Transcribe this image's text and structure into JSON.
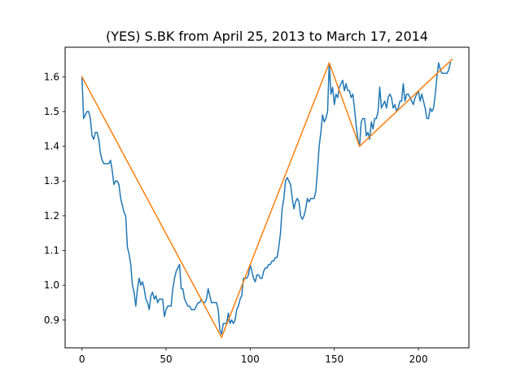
{
  "chart_data": {
    "type": "line",
    "title": "(YES) S.BK from April 25, 2013 to March 17, 2014",
    "xlabel": "",
    "ylabel": "",
    "xlim": [
      -10,
      230
    ],
    "ylim": [
      0.82,
      1.685
    ],
    "x_ticks": [
      0,
      50,
      100,
      150,
      200
    ],
    "y_ticks": [
      0.9,
      1.0,
      1.1,
      1.2,
      1.3,
      1.4,
      1.5,
      1.6
    ],
    "grid": false,
    "legend": "none",
    "series": [
      {
        "color": "#1f77b4",
        "points": [
          [
            0,
            1.6
          ],
          [
            1,
            1.48
          ],
          [
            2,
            1.49
          ],
          [
            3,
            1.5
          ],
          [
            4,
            1.5
          ],
          [
            5,
            1.48
          ],
          [
            6,
            1.43
          ],
          [
            7,
            1.42
          ],
          [
            8,
            1.44
          ],
          [
            9,
            1.44
          ],
          [
            10,
            1.42
          ],
          [
            11,
            1.38
          ],
          [
            12,
            1.36
          ],
          [
            13,
            1.35
          ],
          [
            14,
            1.35
          ],
          [
            15,
            1.35
          ],
          [
            16,
            1.35
          ],
          [
            17,
            1.36
          ],
          [
            18,
            1.33
          ],
          [
            19,
            1.29
          ],
          [
            20,
            1.3
          ],
          [
            21,
            1.3
          ],
          [
            22,
            1.29
          ],
          [
            23,
            1.25
          ],
          [
            24,
            1.23
          ],
          [
            25,
            1.21
          ],
          [
            26,
            1.2
          ],
          [
            27,
            1.11
          ],
          [
            28,
            1.09
          ],
          [
            29,
            1.06
          ],
          [
            30,
            1.0
          ],
          [
            31,
            0.98
          ],
          [
            32,
            0.94
          ],
          [
            33,
            0.99
          ],
          [
            34,
            1.02
          ],
          [
            35,
            1.0
          ],
          [
            36,
            1.01
          ],
          [
            37,
            0.99
          ],
          [
            38,
            0.96
          ],
          [
            39,
            0.95
          ],
          [
            40,
            0.93
          ],
          [
            41,
            0.97
          ],
          [
            42,
            0.98
          ],
          [
            43,
            0.96
          ],
          [
            44,
            0.97
          ],
          [
            45,
            0.95
          ],
          [
            46,
            0.96
          ],
          [
            47,
            0.96
          ],
          [
            48,
            0.96
          ],
          [
            49,
            0.91
          ],
          [
            50,
            0.93
          ],
          [
            51,
            0.94
          ],
          [
            52,
            0.94
          ],
          [
            53,
            0.94
          ],
          [
            54,
            0.99
          ],
          [
            55,
            1.02
          ],
          [
            56,
            1.04
          ],
          [
            57,
            1.05
          ],
          [
            58,
            1.06
          ],
          [
            59,
            0.99
          ],
          [
            60,
            0.99
          ],
          [
            61,
            0.96
          ],
          [
            62,
            0.95
          ],
          [
            63,
            0.94
          ],
          [
            64,
            0.94
          ],
          [
            65,
            0.93
          ],
          [
            66,
            0.93
          ],
          [
            67,
            0.93
          ],
          [
            68,
            0.94
          ],
          [
            69,
            0.95
          ],
          [
            70,
            0.95
          ],
          [
            71,
            0.96
          ],
          [
            72,
            0.95
          ],
          [
            73,
            0.95
          ],
          [
            74,
            0.96
          ],
          [
            75,
            0.99
          ],
          [
            76,
            0.97
          ],
          [
            77,
            0.95
          ],
          [
            78,
            0.95
          ],
          [
            79,
            0.95
          ],
          [
            80,
            0.95
          ],
          [
            81,
            0.93
          ],
          [
            82,
            0.87
          ],
          [
            83,
            0.86
          ],
          [
            84,
            0.89
          ],
          [
            85,
            0.89
          ],
          [
            86,
            0.89
          ],
          [
            87,
            0.92
          ],
          [
            88,
            0.89
          ],
          [
            89,
            0.9
          ],
          [
            90,
            0.89
          ],
          [
            91,
            0.9
          ],
          [
            92,
            0.93
          ],
          [
            93,
            0.94
          ],
          [
            94,
            0.96
          ],
          [
            95,
            0.97
          ],
          [
            96,
            1.02
          ],
          [
            97,
            1.02
          ],
          [
            98,
            1.02
          ],
          [
            99,
            1.03
          ],
          [
            100,
            1.06
          ],
          [
            101,
            1.04
          ],
          [
            102,
            1.02
          ],
          [
            103,
            1.01
          ],
          [
            104,
            1.03
          ],
          [
            105,
            1.03
          ],
          [
            106,
            1.02
          ],
          [
            107,
            1.02
          ],
          [
            108,
            1.04
          ],
          [
            109,
            1.05
          ],
          [
            110,
            1.05
          ],
          [
            111,
            1.06
          ],
          [
            112,
            1.06
          ],
          [
            113,
            1.07
          ],
          [
            114,
            1.07
          ],
          [
            115,
            1.08
          ],
          [
            116,
            1.08
          ],
          [
            117,
            1.11
          ],
          [
            118,
            1.15
          ],
          [
            119,
            1.22
          ],
          [
            120,
            1.25
          ],
          [
            121,
            1.3
          ],
          [
            122,
            1.31
          ],
          [
            123,
            1.3
          ],
          [
            124,
            1.29
          ],
          [
            125,
            1.25
          ],
          [
            126,
            1.22
          ],
          [
            127,
            1.24
          ],
          [
            128,
            1.25
          ],
          [
            129,
            1.24
          ],
          [
            130,
            1.2
          ],
          [
            131,
            1.19
          ],
          [
            132,
            1.2
          ],
          [
            133,
            1.22
          ],
          [
            134,
            1.25
          ],
          [
            135,
            1.24
          ],
          [
            136,
            1.25
          ],
          [
            137,
            1.25
          ],
          [
            138,
            1.25
          ],
          [
            139,
            1.27
          ],
          [
            140,
            1.33
          ],
          [
            141,
            1.4
          ],
          [
            142,
            1.44
          ],
          [
            143,
            1.49
          ],
          [
            144,
            1.47
          ],
          [
            145,
            1.48
          ],
          [
            146,
            1.5
          ],
          [
            147,
            1.64
          ],
          [
            148,
            1.55
          ],
          [
            149,
            1.57
          ],
          [
            150,
            1.52
          ],
          [
            151,
            1.55
          ],
          [
            152,
            1.54
          ],
          [
            153,
            1.57
          ],
          [
            154,
            1.58
          ],
          [
            155,
            1.59
          ],
          [
            156,
            1.56
          ],
          [
            157,
            1.58
          ],
          [
            158,
            1.56
          ],
          [
            159,
            1.56
          ],
          [
            160,
            1.54
          ],
          [
            161,
            1.55
          ],
          [
            162,
            1.51
          ],
          [
            163,
            1.46
          ],
          [
            164,
            1.42
          ],
          [
            165,
            1.4
          ],
          [
            166,
            1.47
          ],
          [
            167,
            1.48
          ],
          [
            168,
            1.48
          ],
          [
            169,
            1.43
          ],
          [
            170,
            1.44
          ],
          [
            171,
            1.42
          ],
          [
            172,
            1.47
          ],
          [
            173,
            1.45
          ],
          [
            174,
            1.48
          ],
          [
            175,
            1.48
          ],
          [
            176,
            1.5
          ],
          [
            177,
            1.57
          ],
          [
            178,
            1.51
          ],
          [
            179,
            1.52
          ],
          [
            180,
            1.53
          ],
          [
            181,
            1.51
          ],
          [
            182,
            1.54
          ],
          [
            183,
            1.55
          ],
          [
            184,
            1.54
          ],
          [
            185,
            1.51
          ],
          [
            186,
            1.52
          ],
          [
            187,
            1.5
          ],
          [
            188,
            1.51
          ],
          [
            189,
            1.53
          ],
          [
            190,
            1.53
          ],
          [
            191,
            1.58
          ],
          [
            192,
            1.53
          ],
          [
            193,
            1.55
          ],
          [
            194,
            1.55
          ],
          [
            195,
            1.54
          ],
          [
            196,
            1.53
          ],
          [
            197,
            1.52
          ],
          [
            198,
            1.54
          ],
          [
            199,
            1.55
          ],
          [
            200,
            1.56
          ],
          [
            201,
            1.53
          ],
          [
            202,
            1.55
          ],
          [
            203,
            1.53
          ],
          [
            204,
            1.51
          ],
          [
            205,
            1.48
          ],
          [
            206,
            1.48
          ],
          [
            207,
            1.51
          ],
          [
            208,
            1.5
          ],
          [
            209,
            1.51
          ],
          [
            210,
            1.55
          ],
          [
            211,
            1.6
          ],
          [
            212,
            1.64
          ],
          [
            213,
            1.62
          ],
          [
            214,
            1.61
          ],
          [
            215,
            1.61
          ],
          [
            216,
            1.61
          ],
          [
            217,
            1.61
          ],
          [
            218,
            1.62
          ],
          [
            219,
            1.64
          ]
        ]
      },
      {
        "color": "#ff7f0e",
        "points": [
          [
            0,
            1.6
          ],
          [
            83,
            0.85
          ],
          [
            147,
            1.64
          ],
          [
            165,
            1.4
          ],
          [
            220,
            1.65
          ]
        ]
      }
    ]
  }
}
